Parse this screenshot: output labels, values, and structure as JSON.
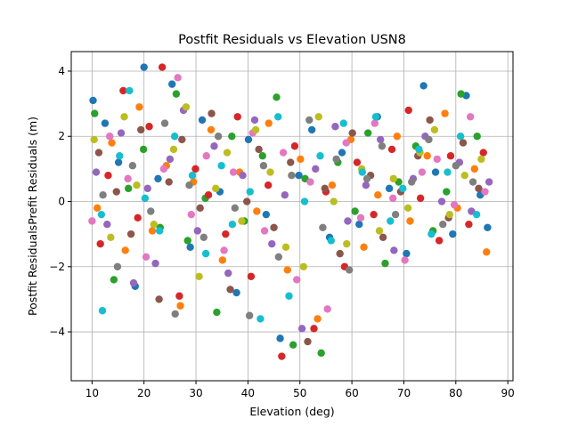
{
  "chart_data": {
    "type": "scatter",
    "title": "Postfit Residuals vs Elevation USN8",
    "xlabel": "Elevation (deg)",
    "ylabel": "Postfit ResidualsPrefit Residuals (m)",
    "xlim": [
      6,
      91
    ],
    "ylim": [
      -5.5,
      4.6
    ],
    "xticks": [
      10,
      20,
      30,
      40,
      50,
      60,
      70,
      80,
      90
    ],
    "yticks": [
      -4,
      -2,
      0,
      2,
      4
    ],
    "xtick_labels": [
      "10",
      "20",
      "30",
      "40",
      "50",
      "60",
      "70",
      "80",
      "90"
    ],
    "ytick_labels": [
      "−4",
      "−2",
      "0",
      "2",
      "4"
    ],
    "grid": true,
    "legend": "none",
    "palette": [
      "#1f77b4",
      "#ff7f0e",
      "#2ca02c",
      "#d62728",
      "#9467bd",
      "#8c564b",
      "#e377c2",
      "#7f7f7f",
      "#bcbd22",
      "#17becf"
    ],
    "series": [
      {
        "x": [
          10.2,
          12.5,
          15.1,
          18.3,
          20.0,
          22.7,
          25.4,
          28.9,
          31.2,
          34.6,
          37.8,
          40.1,
          43.5,
          46.2,
          49.8,
          52.3,
          55.7,
          58.1,
          61.4,
          64.9,
          67.2,
          70.5,
          73.8,
          76.1,
          79.4,
          82.0,
          84.7,
          86.1
        ],
        "y": [
          3.1,
          2.4,
          1.2,
          -2.6,
          4.12,
          0.7,
          3.6,
          -1.4,
          2.5,
          0.3,
          -2.8,
          1.9,
          -0.4,
          -4.2,
          0.8,
          2.2,
          -1.1,
          1.5,
          -0.7,
          2.6,
          0.4,
          -1.6,
          3.55,
          0.9,
          -1.0,
          3.25,
          0.2,
          -0.8
        ]
      },
      {
        "x": [
          11.0,
          13.8,
          16.4,
          19.1,
          21.6,
          24.3,
          27.0,
          29.5,
          32.9,
          35.1,
          38.4,
          41.7,
          44.0,
          47.6,
          50.1,
          53.4,
          56.2,
          59.8,
          62.3,
          65.0,
          68.7,
          71.2,
          74.5,
          77.9,
          80.3,
          83.6,
          85.9
        ],
        "y": [
          -0.2,
          1.8,
          -1.5,
          2.9,
          -0.9,
          1.1,
          -3.2,
          0.6,
          2.2,
          -1.8,
          0.9,
          -0.3,
          2.4,
          -2.1,
          1.3,
          -3.6,
          0.5,
          1.9,
          -1.4,
          0.2,
          2.0,
          -0.6,
          1.4,
          2.7,
          -0.2,
          1.0,
          -1.55
        ]
      },
      {
        "x": [
          10.5,
          14.2,
          17.0,
          19.9,
          23.1,
          26.2,
          28.4,
          31.8,
          34.0,
          36.9,
          39.3,
          42.8,
          45.5,
          48.7,
          51.0,
          54.1,
          57.3,
          60.6,
          63.1,
          66.4,
          69.0,
          72.3,
          75.6,
          78.2,
          81.0,
          84.1
        ],
        "y": [
          2.7,
          -2.4,
          0.4,
          1.6,
          -0.8,
          3.3,
          -1.2,
          0.1,
          -3.4,
          2.0,
          -0.6,
          1.4,
          3.2,
          -4.4,
          0.7,
          -4.65,
          1.2,
          -0.3,
          2.1,
          -1.9,
          0.6,
          1.7,
          -0.9,
          0.3,
          3.3,
          2.0
        ]
      },
      {
        "x": [
          11.6,
          13.1,
          16.0,
          18.8,
          21.0,
          23.5,
          26.8,
          29.9,
          32.4,
          35.7,
          38.0,
          40.6,
          43.9,
          46.5,
          49.0,
          52.7,
          55.0,
          58.6,
          61.0,
          64.2,
          67.7,
          70.9,
          73.2,
          76.8,
          79.0,
          82.5,
          85.3
        ],
        "y": [
          -1.3,
          0.8,
          3.4,
          -0.5,
          2.3,
          4.12,
          -2.9,
          1.0,
          0.2,
          -1.0,
          2.6,
          -2.3,
          0.5,
          -4.75,
          1.7,
          -3.9,
          0.3,
          -2.0,
          1.2,
          -0.4,
          1.6,
          2.8,
          0.1,
          -1.2,
          1.4,
          -0.7,
          1.5
        ]
      },
      {
        "x": [
          10.8,
          12.9,
          15.6,
          18.0,
          20.7,
          22.2,
          25.0,
          27.6,
          30.3,
          33.5,
          36.2,
          39.0,
          41.3,
          44.6,
          47.1,
          50.4,
          53.0,
          56.8,
          59.2,
          62.7,
          65.5,
          68.1,
          71.8,
          74.1,
          77.3,
          80.7,
          83.0,
          86.4
        ],
        "y": [
          0.9,
          -0.7,
          2.1,
          -2.5,
          0.4,
          -1.9,
          1.3,
          2.8,
          -0.9,
          1.7,
          -2.2,
          0.8,
          2.5,
          -1.3,
          0.2,
          -3.9,
          1.0,
          2.3,
          -0.6,
          0.5,
          1.9,
          -1.5,
          0.7,
          2.0,
          0.0,
          1.2,
          -0.3,
          0.6
        ]
      },
      {
        "x": [
          11.3,
          14.7,
          17.5,
          19.4,
          22.9,
          24.8,
          27.3,
          30.8,
          33.0,
          36.6,
          39.8,
          42.1,
          45.0,
          48.2,
          51.5,
          54.8,
          57.7,
          60.1,
          63.6,
          66.0,
          69.4,
          72.7,
          75.0,
          78.6,
          81.4,
          84.4
        ],
        "y": [
          1.5,
          0.3,
          -1.0,
          2.2,
          -3.0,
          0.6,
          1.9,
          -0.2,
          2.7,
          -2.7,
          0.0,
          1.6,
          -0.8,
          1.2,
          -4.3,
          0.4,
          -1.6,
          2.1,
          0.8,
          -1.1,
          0.3,
          1.4,
          2.5,
          -0.5,
          1.8,
          0.4
        ]
      },
      {
        "x": [
          10.0,
          13.4,
          16.9,
          20.4,
          23.8,
          26.5,
          29.1,
          32.0,
          35.4,
          37.2,
          40.9,
          43.2,
          46.8,
          49.4,
          52.0,
          55.3,
          58.9,
          61.7,
          64.4,
          67.9,
          70.2,
          73.5,
          76.4,
          79.7,
          82.8,
          85.6
        ],
        "y": [
          -0.6,
          2.0,
          0.7,
          -1.7,
          1.0,
          3.8,
          -0.4,
          1.4,
          -1.5,
          0.9,
          2.1,
          -0.9,
          1.5,
          -2.4,
          0.6,
          -3.3,
          1.8,
          -0.5,
          2.4,
          0.1,
          -1.8,
          0.9,
          1.3,
          -0.1,
          2.6,
          0.3
        ]
      },
      {
        "x": [
          12.1,
          14.9,
          17.8,
          21.3,
          24.0,
          26.0,
          28.7,
          31.5,
          34.3,
          37.5,
          40.3,
          43.0,
          45.9,
          48.4,
          51.8,
          54.4,
          57.0,
          59.5,
          62.9,
          65.8,
          68.4,
          71.5,
          74.8,
          77.5,
          80.0,
          83.3
        ],
        "y": [
          0.2,
          -2.0,
          1.1,
          -0.3,
          2.4,
          -3.45,
          0.5,
          -1.1,
          2.0,
          -0.2,
          -3.5,
          1.1,
          -1.7,
          0.8,
          2.5,
          -0.8,
          1.3,
          -2.1,
          0.7,
          1.7,
          -0.4,
          0.6,
          1.9,
          -0.7,
          1.1,
          0.6
        ]
      },
      {
        "x": [
          10.4,
          13.6,
          16.2,
          18.6,
          21.9,
          25.7,
          28.1,
          30.6,
          33.8,
          36.0,
          38.8,
          41.5,
          44.3,
          47.3,
          50.7,
          53.6,
          56.5,
          59.0,
          61.9,
          65.3,
          68.0,
          70.8,
          73.1,
          75.9,
          78.8,
          81.7,
          84.9
        ],
        "y": [
          1.9,
          -1.1,
          2.6,
          0.5,
          -0.7,
          1.6,
          2.9,
          -2.3,
          0.4,
          1.5,
          -0.6,
          2.2,
          0.9,
          -1.4,
          -2.0,
          2.6,
          0.0,
          -1.3,
          1.0,
          -0.9,
          0.7,
          -0.2,
          1.5,
          2.2,
          -0.4,
          0.8,
          1.3
        ]
      },
      {
        "x": [
          11.8,
          12.0,
          15.3,
          17.2,
          20.2,
          23.0,
          25.9,
          29.3,
          31.9,
          34.9,
          37.0,
          40.4,
          42.4,
          45.8,
          47.9,
          50.9,
          53.9,
          56.0,
          58.4,
          62.0,
          64.6,
          67.4,
          69.8,
          72.9,
          75.3,
          78.4,
          80.9,
          84.0
        ],
        "y": [
          -0.4,
          -3.35,
          1.4,
          3.4,
          0.1,
          -0.9,
          2.0,
          0.8,
          -1.6,
          1.1,
          -0.7,
          0.3,
          -3.6,
          2.6,
          -2.9,
          0.0,
          1.4,
          -1.2,
          2.4,
          0.9,
          2.6,
          -0.6,
          0.4,
          1.6,
          -1.0,
          0.9,
          2.0,
          -0.4
        ]
      }
    ]
  }
}
